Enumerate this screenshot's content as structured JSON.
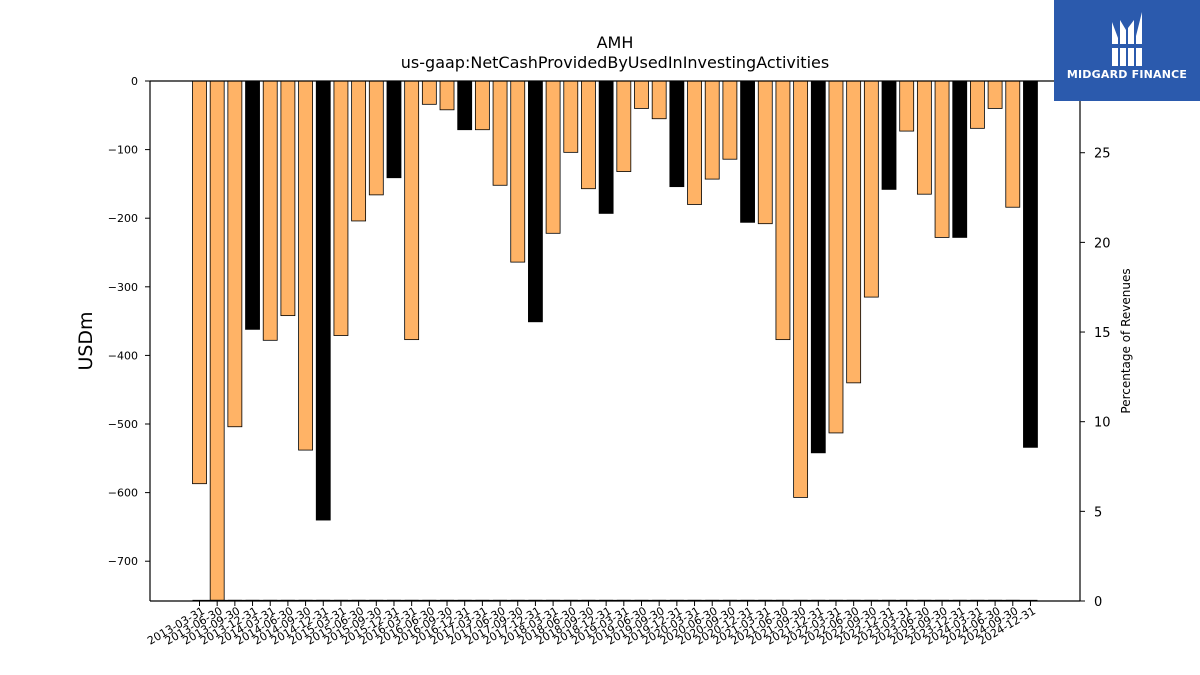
{
  "brand": {
    "name": "MIDGARD FINANCE",
    "bg_color": "#2b5aad"
  },
  "chart_data": {
    "type": "bar",
    "title": "AMH",
    "subtitle": "us-gaap:NetCashProvidedByUsedInInvestingActivities",
    "ylabel": "USDm",
    "y2label": "Percentage of Revenues",
    "ylim": [
      -758,
      0
    ],
    "y2lim": [
      0,
      29
    ],
    "yticks": [
      0,
      -100,
      -200,
      -300,
      -400,
      -500,
      -600,
      -700
    ],
    "y2ticks": [
      0,
      5,
      10,
      15,
      20,
      25
    ],
    "grid": false,
    "colors": {
      "quarter": "#ffb366",
      "year_end": "#000000",
      "edge": "#000000"
    },
    "categories": [
      "2013-03-31",
      "2013-06-30",
      "2013-09-30",
      "2013-12-31",
      "2014-03-31",
      "2014-06-30",
      "2014-09-30",
      "2014-12-31",
      "2015-03-31",
      "2015-06-30",
      "2015-09-30",
      "2015-12-31",
      "2016-03-31",
      "2016-06-30",
      "2016-09-30",
      "2016-12-31",
      "2017-03-31",
      "2017-06-30",
      "2017-09-30",
      "2017-12-31",
      "2018-03-31",
      "2018-06-30",
      "2018-09-30",
      "2018-12-31",
      "2019-03-31",
      "2019-06-30",
      "2019-09-30",
      "2019-12-31",
      "2020-03-31",
      "2020-06-30",
      "2020-09-30",
      "2020-12-31",
      "2021-03-31",
      "2021-06-30",
      "2021-09-30",
      "2021-12-31",
      "2022-03-31",
      "2022-06-30",
      "2022-09-30",
      "2022-12-31",
      "2023-03-31",
      "2023-06-30",
      "2023-09-30",
      "2023-12-31",
      "2024-03-31",
      "2024-06-30",
      "2024-09-30",
      "2024-12-31"
    ],
    "values": [
      -587,
      -758,
      -504,
      -362,
      -378,
      -342,
      -538,
      -640,
      -371,
      -204,
      -166,
      -141,
      -377,
      -34,
      -42,
      -71,
      -71,
      -152,
      -264,
      -351,
      -222,
      -104,
      -157,
      -193,
      -132,
      -40,
      -55,
      -154,
      -180,
      -143,
      -114,
      -206,
      -208,
      -377,
      -607,
      -542,
      -513,
      -440,
      -315,
      -158,
      -73,
      -165,
      -228,
      -228,
      -69,
      -40,
      -184,
      -534
    ],
    "year_end": [
      false,
      false,
      false,
      true,
      false,
      false,
      false,
      true,
      false,
      false,
      false,
      true,
      false,
      false,
      false,
      true,
      false,
      false,
      false,
      true,
      false,
      false,
      false,
      true,
      false,
      false,
      false,
      true,
      false,
      false,
      false,
      true,
      false,
      false,
      false,
      true,
      false,
      false,
      false,
      true,
      false,
      false,
      false,
      true,
      false,
      false,
      false,
      true
    ],
    "pct_of_revenues": [
      0,
      0,
      0,
      0,
      0,
      0,
      0,
      0,
      0,
      0,
      0,
      0,
      0,
      0,
      0,
      0,
      0,
      0,
      0,
      0,
      0,
      0,
      0,
      0,
      0,
      0,
      0,
      0,
      0,
      0,
      0,
      0,
      0,
      0,
      0,
      0,
      0,
      0,
      0,
      0,
      0,
      0,
      0,
      0,
      0,
      0,
      0,
      0
    ]
  }
}
